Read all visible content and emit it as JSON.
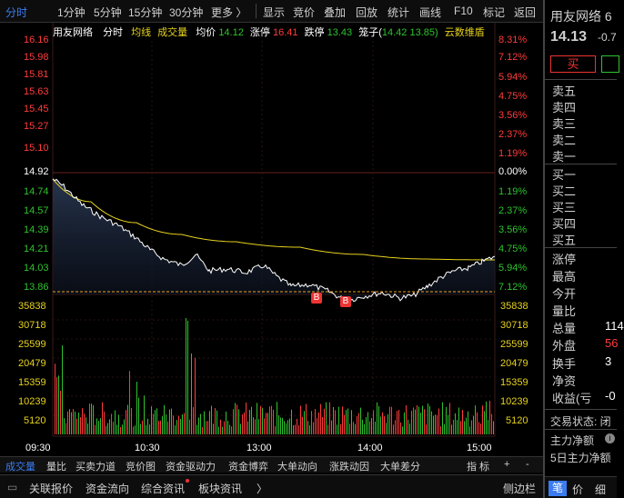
{
  "toolbar": {
    "items": [
      "分时",
      "1分钟",
      "5分钟",
      "15分钟",
      "30分钟",
      "更多 〉",
      "显示",
      "竞价",
      "叠加",
      "回放",
      "统计",
      "画线",
      "F10",
      "标记",
      "返回"
    ]
  },
  "info_bar": {
    "name": "用友网络",
    "mode": "分时",
    "avg_line": "均线",
    "volume": "成交量",
    "avg_price_label": "均价",
    "avg_price": "14.12",
    "limit_up_label": "涨停",
    "limit_up": "16.41",
    "limit_down_label": "跌停",
    "limit_down": "13.43",
    "cage_label": "笼子(",
    "cage_low": "14.42",
    "cage_high": "13.85)",
    "cloud": "云数维盾"
  },
  "price_axis": {
    "left": [
      "16.16",
      "15.98",
      "15.81",
      "15.63",
      "15.45",
      "15.27",
      "15.10",
      "14.92",
      "14.74",
      "14.57",
      "14.39",
      "14.21",
      "14.03",
      "13.86"
    ],
    "right": [
      "8.31%",
      "7.12%",
      "5.94%",
      "4.75%",
      "3.56%",
      "2.37%",
      "1.19%",
      "0.00%",
      "1.19%",
      "2.37%",
      "3.56%",
      "4.75%",
      "5.94%",
      "7.12%"
    ]
  },
  "volume_axis": [
    "35838",
    "30718",
    "25599",
    "20479",
    "15359",
    "10239",
    "5120"
  ],
  "time_axis": [
    "09:30",
    "10:30",
    "13:00",
    "14:00",
    "15:00"
  ],
  "markers": [
    "B",
    "B"
  ],
  "bottom_bar": {
    "items": [
      "成交量",
      "量比",
      "买卖力道",
      "竞价图",
      "资金驱动力",
      "资金博弈",
      "大单动向",
      "涨跌动因",
      "大单差分"
    ],
    "right_items": [
      "指 标",
      "+",
      "-"
    ]
  },
  "bottom_tabs": [
    "关联报价",
    "资金流向",
    "综合资讯",
    "板块资讯",
    "〉",
    "侧边栏"
  ],
  "right_panel": {
    "title": "用友网络 6",
    "price": "14.13",
    "change": "-0.7",
    "buy_button": "买",
    "sell_labels": [
      "卖五",
      "卖四",
      "卖三",
      "卖二",
      "卖一"
    ],
    "buy_labels": [
      "买一",
      "买二",
      "买三",
      "买四",
      "买五"
    ],
    "stats_labels": [
      "涨停",
      "最高",
      "今开",
      "量比",
      "总量",
      "外盘",
      "换手",
      "净资",
      "收益(亏"
    ],
    "stats_values": [
      "",
      "",
      "",
      "",
      "114",
      "56",
      "3",
      "",
      "-0"
    ],
    "trade_status": "交易状态: 闭",
    "main_flow": "主力净额",
    "main_flow_5d": "5日主力净额",
    "tabs": [
      "笔",
      "价",
      "细"
    ]
  },
  "colors": {
    "up": "#ff3b3b",
    "down": "#2fc22f",
    "avg": "#e6d21c",
    "price": "#ffffff",
    "accent": "#3b7cf0"
  }
}
